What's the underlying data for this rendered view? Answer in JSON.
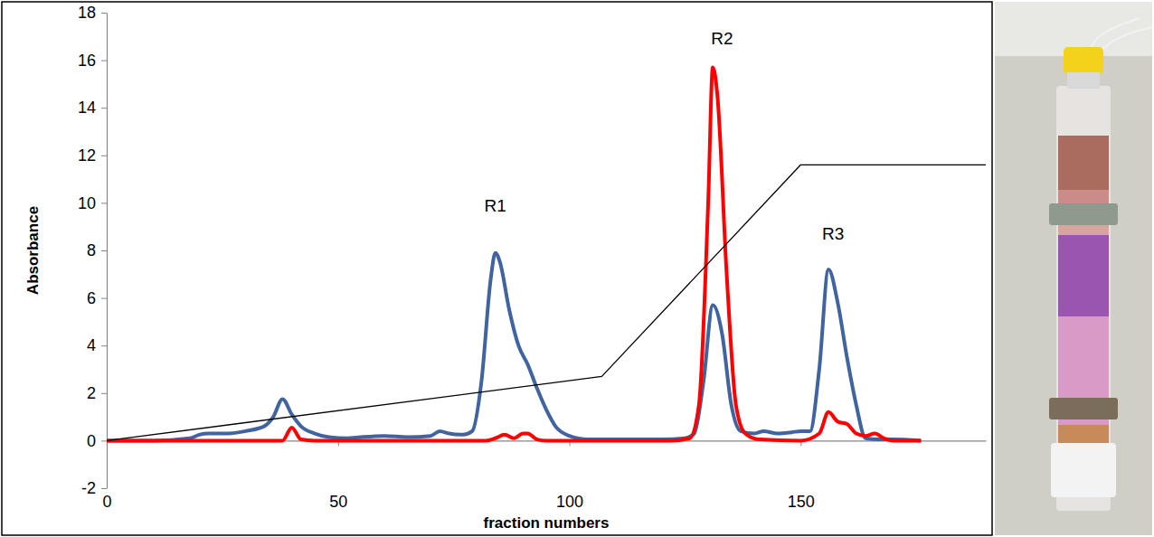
{
  "chart_data": {
    "type": "line",
    "x_label": "fraction numbers",
    "y_label": "Absorbance",
    "xlim": [
      0,
      190
    ],
    "xticks": [
      0,
      50,
      100,
      150
    ],
    "ylim": [
      -2,
      18
    ],
    "yticks": [
      -2,
      0,
      2,
      4,
      6,
      8,
      10,
      12,
      14,
      16,
      18
    ],
    "grid": false,
    "series": [
      {
        "color": "#3f64a0",
        "line_style": "solid",
        "x": [
          0,
          10,
          18,
          20,
          22,
          26,
          30,
          34,
          36,
          38,
          40,
          42,
          45,
          48,
          52,
          55,
          60,
          65,
          70,
          72,
          74,
          77,
          79,
          81,
          83,
          84,
          85,
          87,
          89,
          91,
          93,
          95,
          97,
          100,
          104,
          110,
          120,
          125,
          127,
          129,
          131,
          133,
          135,
          137,
          140,
          142,
          145,
          148,
          150,
          152,
          154,
          156,
          158,
          160,
          162,
          164,
          167,
          170,
          176
        ],
        "values": [
          0,
          0,
          0.1,
          0.25,
          0.3,
          0.3,
          0.4,
          0.6,
          1,
          1.75,
          1.1,
          0.6,
          0.3,
          0.15,
          0.1,
          0.15,
          0.2,
          0.15,
          0.2,
          0.4,
          0.3,
          0.25,
          0.4,
          2.5,
          6.8,
          7.9,
          7.5,
          5.5,
          4,
          3.2,
          2.2,
          1.3,
          0.6,
          0.2,
          0.05,
          0.05,
          0.05,
          0.1,
          0.3,
          2.5,
          5.7,
          4.5,
          1.5,
          0.4,
          0.3,
          0.4,
          0.3,
          0.35,
          0.4,
          0.4,
          3,
          7.2,
          5.8,
          3.5,
          1.5,
          0.1,
          0.05,
          0.05,
          0
        ]
      },
      {
        "color": "#ff0000",
        "line_style": "solid",
        "x": [
          0,
          36,
          38,
          40,
          42,
          45,
          82,
          84,
          86,
          88,
          90,
          91,
          93,
          95,
          122,
          126,
          128,
          130,
          131,
          132,
          134,
          136,
          138,
          141,
          150,
          154,
          156,
          158,
          160,
          162,
          164,
          166,
          168,
          170,
          176
        ],
        "values": [
          0,
          0,
          0,
          0.55,
          0.05,
          0,
          0,
          0.1,
          0.25,
          0.1,
          0.3,
          0.3,
          0.05,
          0,
          0,
          0.1,
          1.5,
          10,
          15.7,
          14.5,
          7,
          1.5,
          0.3,
          0.05,
          0,
          0.3,
          1.2,
          0.8,
          0.7,
          0.3,
          0.2,
          0.3,
          0.1,
          0,
          0
        ]
      },
      {
        "color": "#000000",
        "line_style": "thin",
        "x": [
          0,
          107,
          150,
          190
        ],
        "values": [
          0,
          2.7,
          11.6,
          11.6
        ]
      }
    ],
    "annotations": [
      {
        "text": "R1",
        "x": 84,
        "y": 9.9
      },
      {
        "text": "R2",
        "x": 133,
        "y": 16.9
      },
      {
        "text": "R3",
        "x": 157,
        "y": 8.7
      }
    ]
  }
}
